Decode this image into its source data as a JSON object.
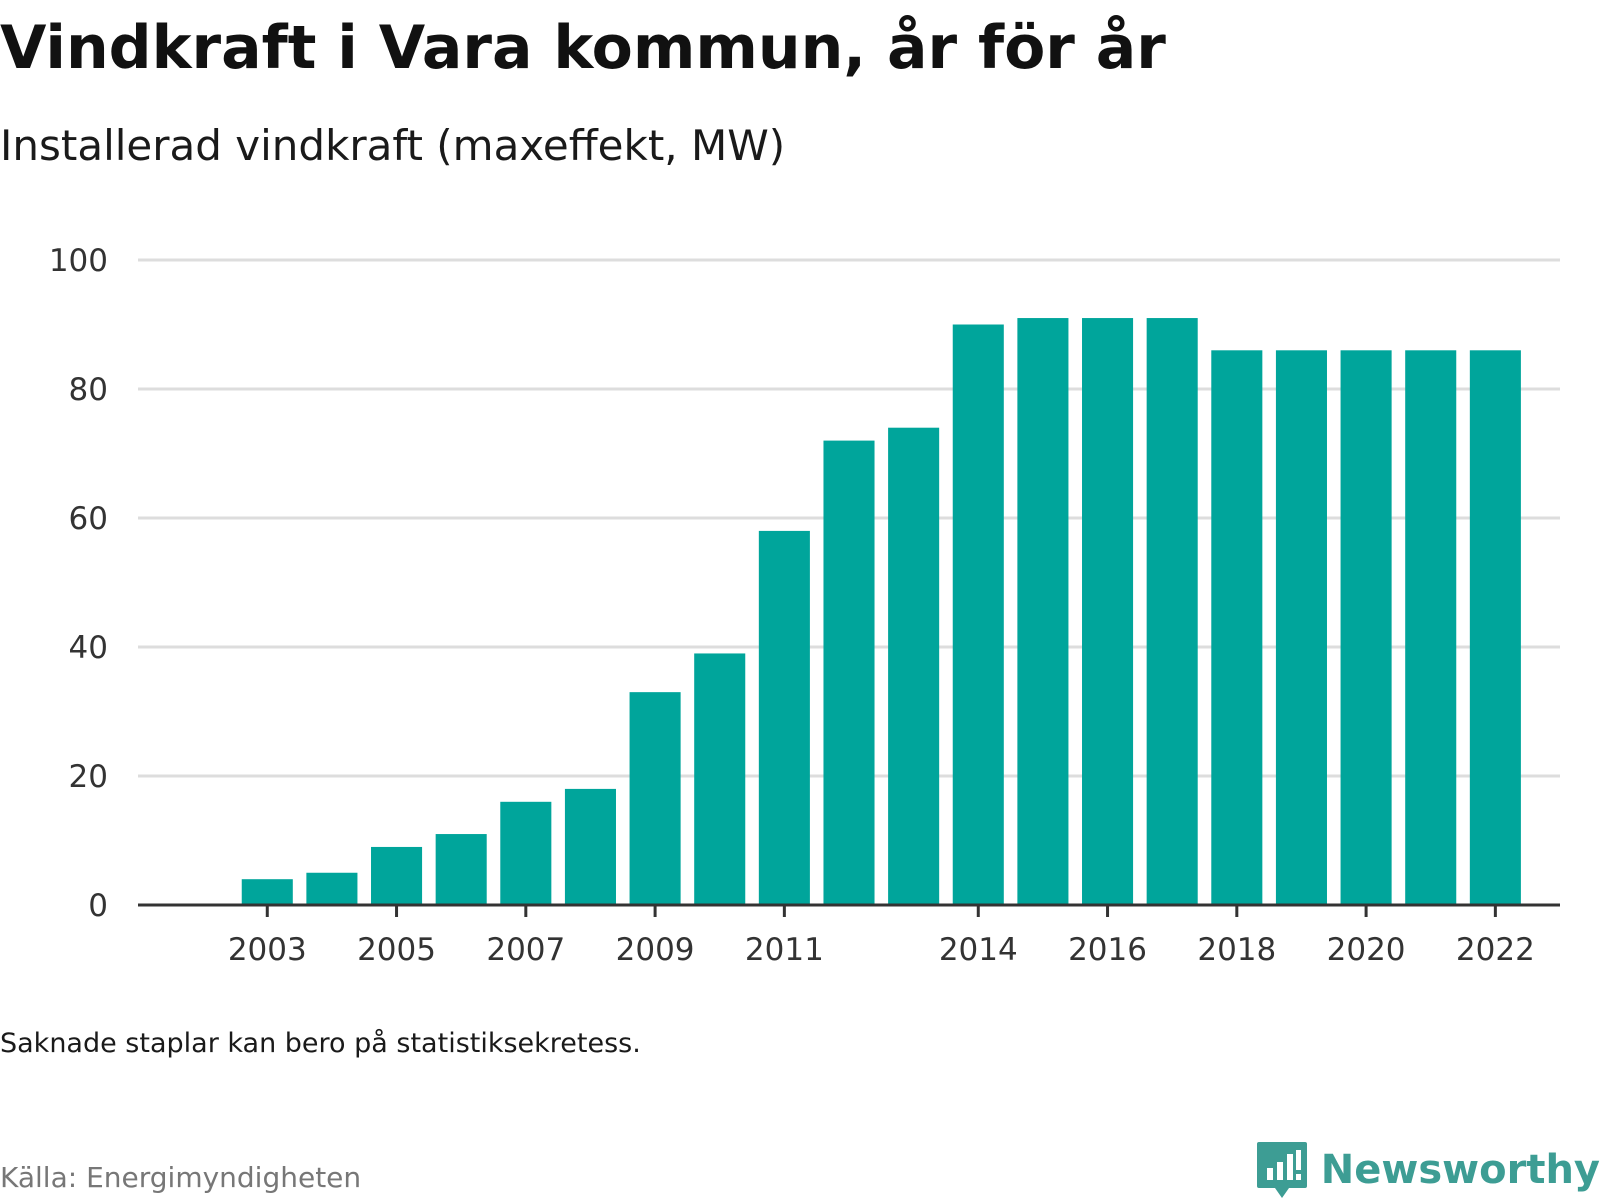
{
  "title": "Vindkraft i Vara kommun, år för år",
  "subtitle": "Installerad vindkraft (maxeffekt, MW)",
  "note": "Saknade staplar kan bero på statistiksekretess.",
  "source": "Källa: Energimyndigheten",
  "brand": {
    "name": "Newsworthy",
    "logo_icon": "newsworthy-logo-icon"
  },
  "colors": {
    "bar": "#00a59b",
    "grid": "#dddddd",
    "axis": "#333333",
    "brand": "#3d9d94"
  },
  "chart_data": {
    "type": "bar",
    "title": "Vindkraft i Vara kommun, år för år",
    "subtitle": "Installerad vindkraft (maxeffekt, MW)",
    "xlabel": "",
    "ylabel": "",
    "categories": [
      2003,
      2004,
      2005,
      2006,
      2007,
      2008,
      2009,
      2010,
      2011,
      2012,
      2013,
      2014,
      2015,
      2016,
      2017,
      2018,
      2019,
      2020,
      2021,
      2022
    ],
    "values": [
      4,
      5,
      9,
      11,
      16,
      18,
      33,
      39,
      58,
      72,
      74,
      90,
      91,
      91,
      91,
      86,
      86,
      86,
      86,
      86
    ],
    "x_tick_labels": [
      "2003",
      "2005",
      "2007",
      "2009",
      "2011",
      "2014",
      "2016",
      "2018",
      "2020",
      "2022"
    ],
    "y_ticks": [
      0,
      20,
      40,
      60,
      80,
      100
    ],
    "ylim": [
      0,
      100
    ],
    "xlim": [
      2001,
      2023
    ],
    "grid": true,
    "legend": "none"
  }
}
